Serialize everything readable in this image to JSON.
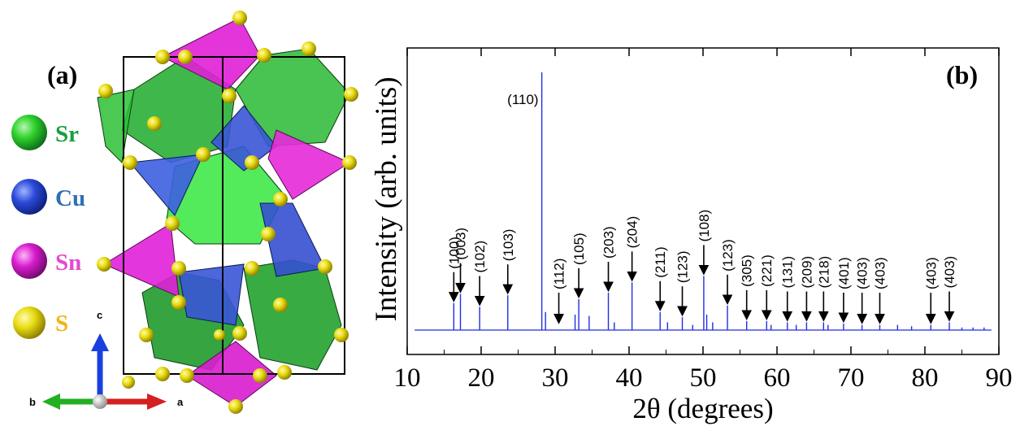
{
  "panel_a": {
    "label": "(a)",
    "legend": [
      {
        "name": "Sr",
        "color": "#1a9e3a"
      },
      {
        "name": "Cu",
        "color": "#2f6fb6"
      },
      {
        "name": "Sn",
        "color": "#e34ad2"
      },
      {
        "name": "S",
        "color": "#f2b319"
      }
    ],
    "axes": {
      "a": "a",
      "b": "b",
      "c": "c"
    }
  },
  "chart_data": {
    "type": "line",
    "panel_label": "(b)",
    "xlabel": "2θ (degrees)",
    "ylabel": "Intensity (arb. units)",
    "xlim": [
      10,
      90
    ],
    "ylim": [
      0,
      100
    ],
    "xticks": [
      "10",
      "20",
      "30",
      "40",
      "50",
      "60",
      "70",
      "80",
      "90"
    ],
    "series": [
      {
        "color": "#1f2fe0",
        "peaks": [
          [
            16.3,
            10.5
          ],
          [
            17.2,
            14.0
          ],
          [
            19.8,
            9.0
          ],
          [
            23.6,
            13.5
          ],
          [
            28.2,
            100.0
          ],
          [
            28.7,
            7.0
          ],
          [
            32.7,
            6.0
          ],
          [
            33.2,
            12.0
          ],
          [
            34.6,
            5.5
          ],
          [
            37.2,
            14.5
          ],
          [
            38.0,
            3.0
          ],
          [
            40.4,
            18.5
          ],
          [
            44.2,
            7.0
          ],
          [
            45.2,
            3.0
          ],
          [
            47.2,
            5.0
          ],
          [
            48.6,
            2.0
          ],
          [
            50.1,
            21.0
          ],
          [
            50.5,
            6.0
          ],
          [
            51.3,
            3.0
          ],
          [
            53.3,
            9.5
          ],
          [
            55.9,
            3.5
          ],
          [
            58.6,
            3.5
          ],
          [
            59.2,
            2.0
          ],
          [
            61.4,
            3.0
          ],
          [
            62.6,
            2.0
          ],
          [
            64.0,
            3.0
          ],
          [
            66.3,
            3.0
          ],
          [
            66.9,
            2.0
          ],
          [
            69.0,
            2.5
          ],
          [
            71.5,
            2.0
          ],
          [
            73.9,
            2.0
          ],
          [
            76.3,
            2.0
          ],
          [
            78.2,
            1.5
          ],
          [
            80.8,
            2.0
          ],
          [
            83.3,
            3.0
          ],
          [
            85.0,
            1.0
          ],
          [
            86.5,
            1.0
          ],
          [
            88.0,
            1.0
          ]
        ]
      }
    ],
    "annotations": [
      {
        "label": "(100)",
        "x": 16.3
      },
      {
        "label": "(003)",
        "x": 17.2
      },
      {
        "label": "(102)",
        "x": 19.8
      },
      {
        "label": "(103)",
        "x": 23.6
      },
      {
        "label": "(110)",
        "x": 28.2
      },
      {
        "label": "(112)",
        "x": 30.5
      },
      {
        "label": "(105)",
        "x": 33.2
      },
      {
        "label": "(203)",
        "x": 37.2
      },
      {
        "label": "(204)",
        "x": 40.4
      },
      {
        "label": "(211)",
        "x": 44.2
      },
      {
        "label": "(123)",
        "x": 47.2
      },
      {
        "label": "(108)",
        "x": 50.1
      },
      {
        "label": "(123)",
        "x": 53.3
      },
      {
        "label": "(305)",
        "x": 55.9
      },
      {
        "label": "(221)",
        "x": 58.6
      },
      {
        "label": "(131)",
        "x": 61.4
      },
      {
        "label": "(209)",
        "x": 64.0
      },
      {
        "label": "(218)",
        "x": 66.3
      },
      {
        "label": "(401)",
        "x": 69.0
      },
      {
        "label": "(403)",
        "x": 71.5
      },
      {
        "label": "(403)",
        "x": 73.9
      },
      {
        "label": "(403)",
        "x": 80.8
      },
      {
        "label": "(403)",
        "x": 83.3
      }
    ]
  }
}
